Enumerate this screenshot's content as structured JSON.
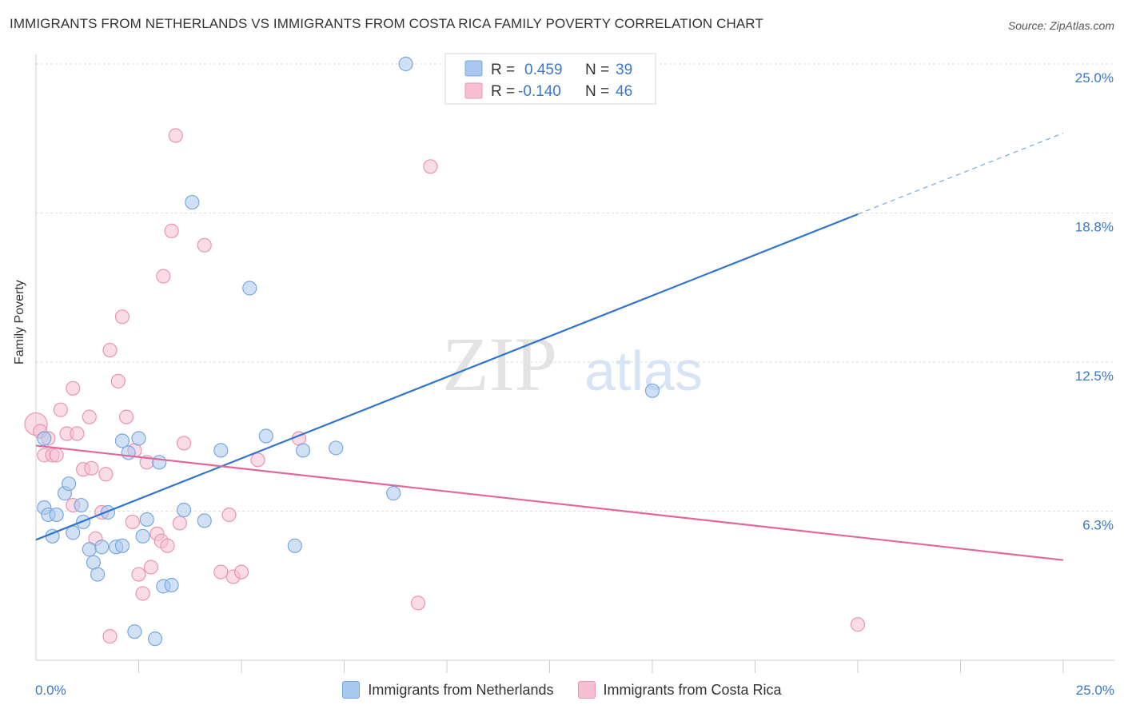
{
  "title": "IMMIGRANTS FROM NETHERLANDS VS IMMIGRANTS FROM COSTA RICA FAMILY POVERTY CORRELATION CHART",
  "source": "Source: ZipAtlas.com",
  "watermark": {
    "zip": "ZIP",
    "atlas": "atlas"
  },
  "chart_data": {
    "type": "scatter",
    "ylabel": "Family Poverty",
    "xlim": [
      0,
      25
    ],
    "ylim": [
      0,
      25
    ],
    "y_ticks": [
      {
        "value": 25.0,
        "label": "25.0%"
      },
      {
        "value": 18.75,
        "label": "18.8%"
      },
      {
        "value": 12.5,
        "label": "12.5%"
      },
      {
        "value": 6.25,
        "label": "6.3%"
      }
    ],
    "x_tick_labels": {
      "left": "0.0%",
      "right": "25.0%"
    },
    "x_minor_ticks": [
      2.5,
      5,
      7.5,
      10,
      12.5,
      15,
      17.5,
      20,
      22.5,
      25
    ],
    "legend": {
      "rows": [
        {
          "r_label": "R = ",
          "r_value": "0.459",
          "n_label": "N = ",
          "n_value": "39"
        },
        {
          "r_label": "R = ",
          "r_value": "-0.140",
          "n_label": "N = ",
          "n_value": "46"
        }
      ]
    },
    "series": [
      {
        "name": "Immigrants from Netherlands",
        "color": "#a9c8ef",
        "stroke": "#7aa8dd",
        "line_color": "#2f74d0",
        "trend": {
          "x0": 0,
          "y0": 5.05,
          "x1": 20,
          "y1": 18.7,
          "dash_x1": 25,
          "dash_y1": 22.1
        },
        "points": [
          [
            0.2,
            9.3
          ],
          [
            0.2,
            6.4
          ],
          [
            0.3,
            6.1
          ],
          [
            0.4,
            5.2
          ],
          [
            0.5,
            6.1
          ],
          [
            0.7,
            7.0
          ],
          [
            0.8,
            7.4
          ],
          [
            0.9,
            5.35
          ],
          [
            1.1,
            6.5
          ],
          [
            1.15,
            5.8
          ],
          [
            1.3,
            4.65
          ],
          [
            1.4,
            4.1
          ],
          [
            1.5,
            3.6
          ],
          [
            1.6,
            4.75
          ],
          [
            1.75,
            6.2
          ],
          [
            1.95,
            4.75
          ],
          [
            2.1,
            9.2
          ],
          [
            2.1,
            4.8
          ],
          [
            2.25,
            8.7
          ],
          [
            2.4,
            1.2
          ],
          [
            2.5,
            9.3
          ],
          [
            2.6,
            5.2
          ],
          [
            2.7,
            5.9
          ],
          [
            2.9,
            0.9
          ],
          [
            3.0,
            8.3
          ],
          [
            3.1,
            3.1
          ],
          [
            3.3,
            3.15
          ],
          [
            3.6,
            6.3
          ],
          [
            4.1,
            5.85
          ],
          [
            4.5,
            8.8
          ],
          [
            5.2,
            15.6
          ],
          [
            5.6,
            9.4
          ],
          [
            6.3,
            4.8
          ],
          [
            6.5,
            8.8
          ],
          [
            7.3,
            8.9
          ],
          [
            8.7,
            7.0
          ],
          [
            9.0,
            25.0
          ],
          [
            15.0,
            11.3
          ],
          [
            3.8,
            19.2
          ]
        ]
      },
      {
        "name": "Immigrants from Costa Rica",
        "color": "#f6bfd2",
        "stroke": "#ea94b3",
        "line_color": "#e0689a",
        "trend": {
          "x0": 0,
          "y0": 9.0,
          "x1": 25,
          "y1": 4.2
        },
        "points": [
          [
            0.0,
            9.9
          ],
          [
            0.1,
            9.6
          ],
          [
            0.2,
            8.6
          ],
          [
            0.3,
            9.3
          ],
          [
            0.4,
            8.6
          ],
          [
            0.5,
            8.6
          ],
          [
            0.6,
            10.5
          ],
          [
            0.75,
            9.5
          ],
          [
            0.9,
            11.4
          ],
          [
            0.9,
            6.5
          ],
          [
            1.0,
            9.5
          ],
          [
            1.15,
            8.0
          ],
          [
            1.3,
            10.2
          ],
          [
            1.35,
            8.05
          ],
          [
            1.45,
            5.1
          ],
          [
            1.6,
            6.2
          ],
          [
            1.7,
            7.8
          ],
          [
            1.8,
            13.0
          ],
          [
            1.8,
            1.0
          ],
          [
            2.0,
            11.7
          ],
          [
            2.1,
            14.4
          ],
          [
            2.2,
            10.2
          ],
          [
            2.35,
            5.8
          ],
          [
            2.4,
            8.8
          ],
          [
            2.5,
            3.6
          ],
          [
            2.6,
            2.8
          ],
          [
            2.7,
            8.3
          ],
          [
            2.8,
            3.9
          ],
          [
            2.95,
            5.3
          ],
          [
            3.05,
            5.0
          ],
          [
            3.1,
            16.1
          ],
          [
            3.2,
            4.8
          ],
          [
            3.3,
            18.0
          ],
          [
            3.4,
            22.0
          ],
          [
            3.5,
            5.75
          ],
          [
            3.6,
            9.1
          ],
          [
            4.1,
            17.4
          ],
          [
            4.5,
            3.7
          ],
          [
            4.7,
            6.1
          ],
          [
            4.8,
            3.5
          ],
          [
            5.0,
            3.7
          ],
          [
            5.4,
            8.4
          ],
          [
            6.4,
            9.3
          ],
          [
            9.3,
            2.4
          ],
          [
            9.6,
            20.7
          ],
          [
            20.0,
            1.5
          ]
        ]
      }
    ]
  }
}
